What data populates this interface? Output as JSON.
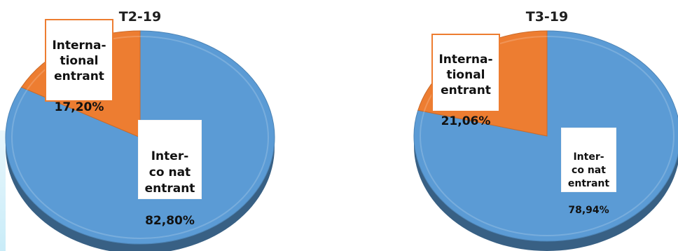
{
  "chart_data": [
    {
      "type": "pie",
      "title": "T2-19",
      "slices": [
        {
          "label": "Inter-\nco nat\nentrant",
          "value": 82.8,
          "display": "82,80%",
          "color": "#5b9bd5"
        },
        {
          "label": "Interna-\ntional\nentrant",
          "value": 17.2,
          "display": "17,20%",
          "color": "#ed7d31"
        }
      ]
    },
    {
      "type": "pie",
      "title": "T3-19",
      "slices": [
        {
          "label": "Inter-\nco nat\nentrant",
          "value": 78.94,
          "display": "78,94%",
          "color": "#5b9bd5"
        },
        {
          "label": "Interna-\ntional\nentrant",
          "value": 21.06,
          "display": "21,06%",
          "color": "#ed7d31"
        }
      ]
    }
  ]
}
